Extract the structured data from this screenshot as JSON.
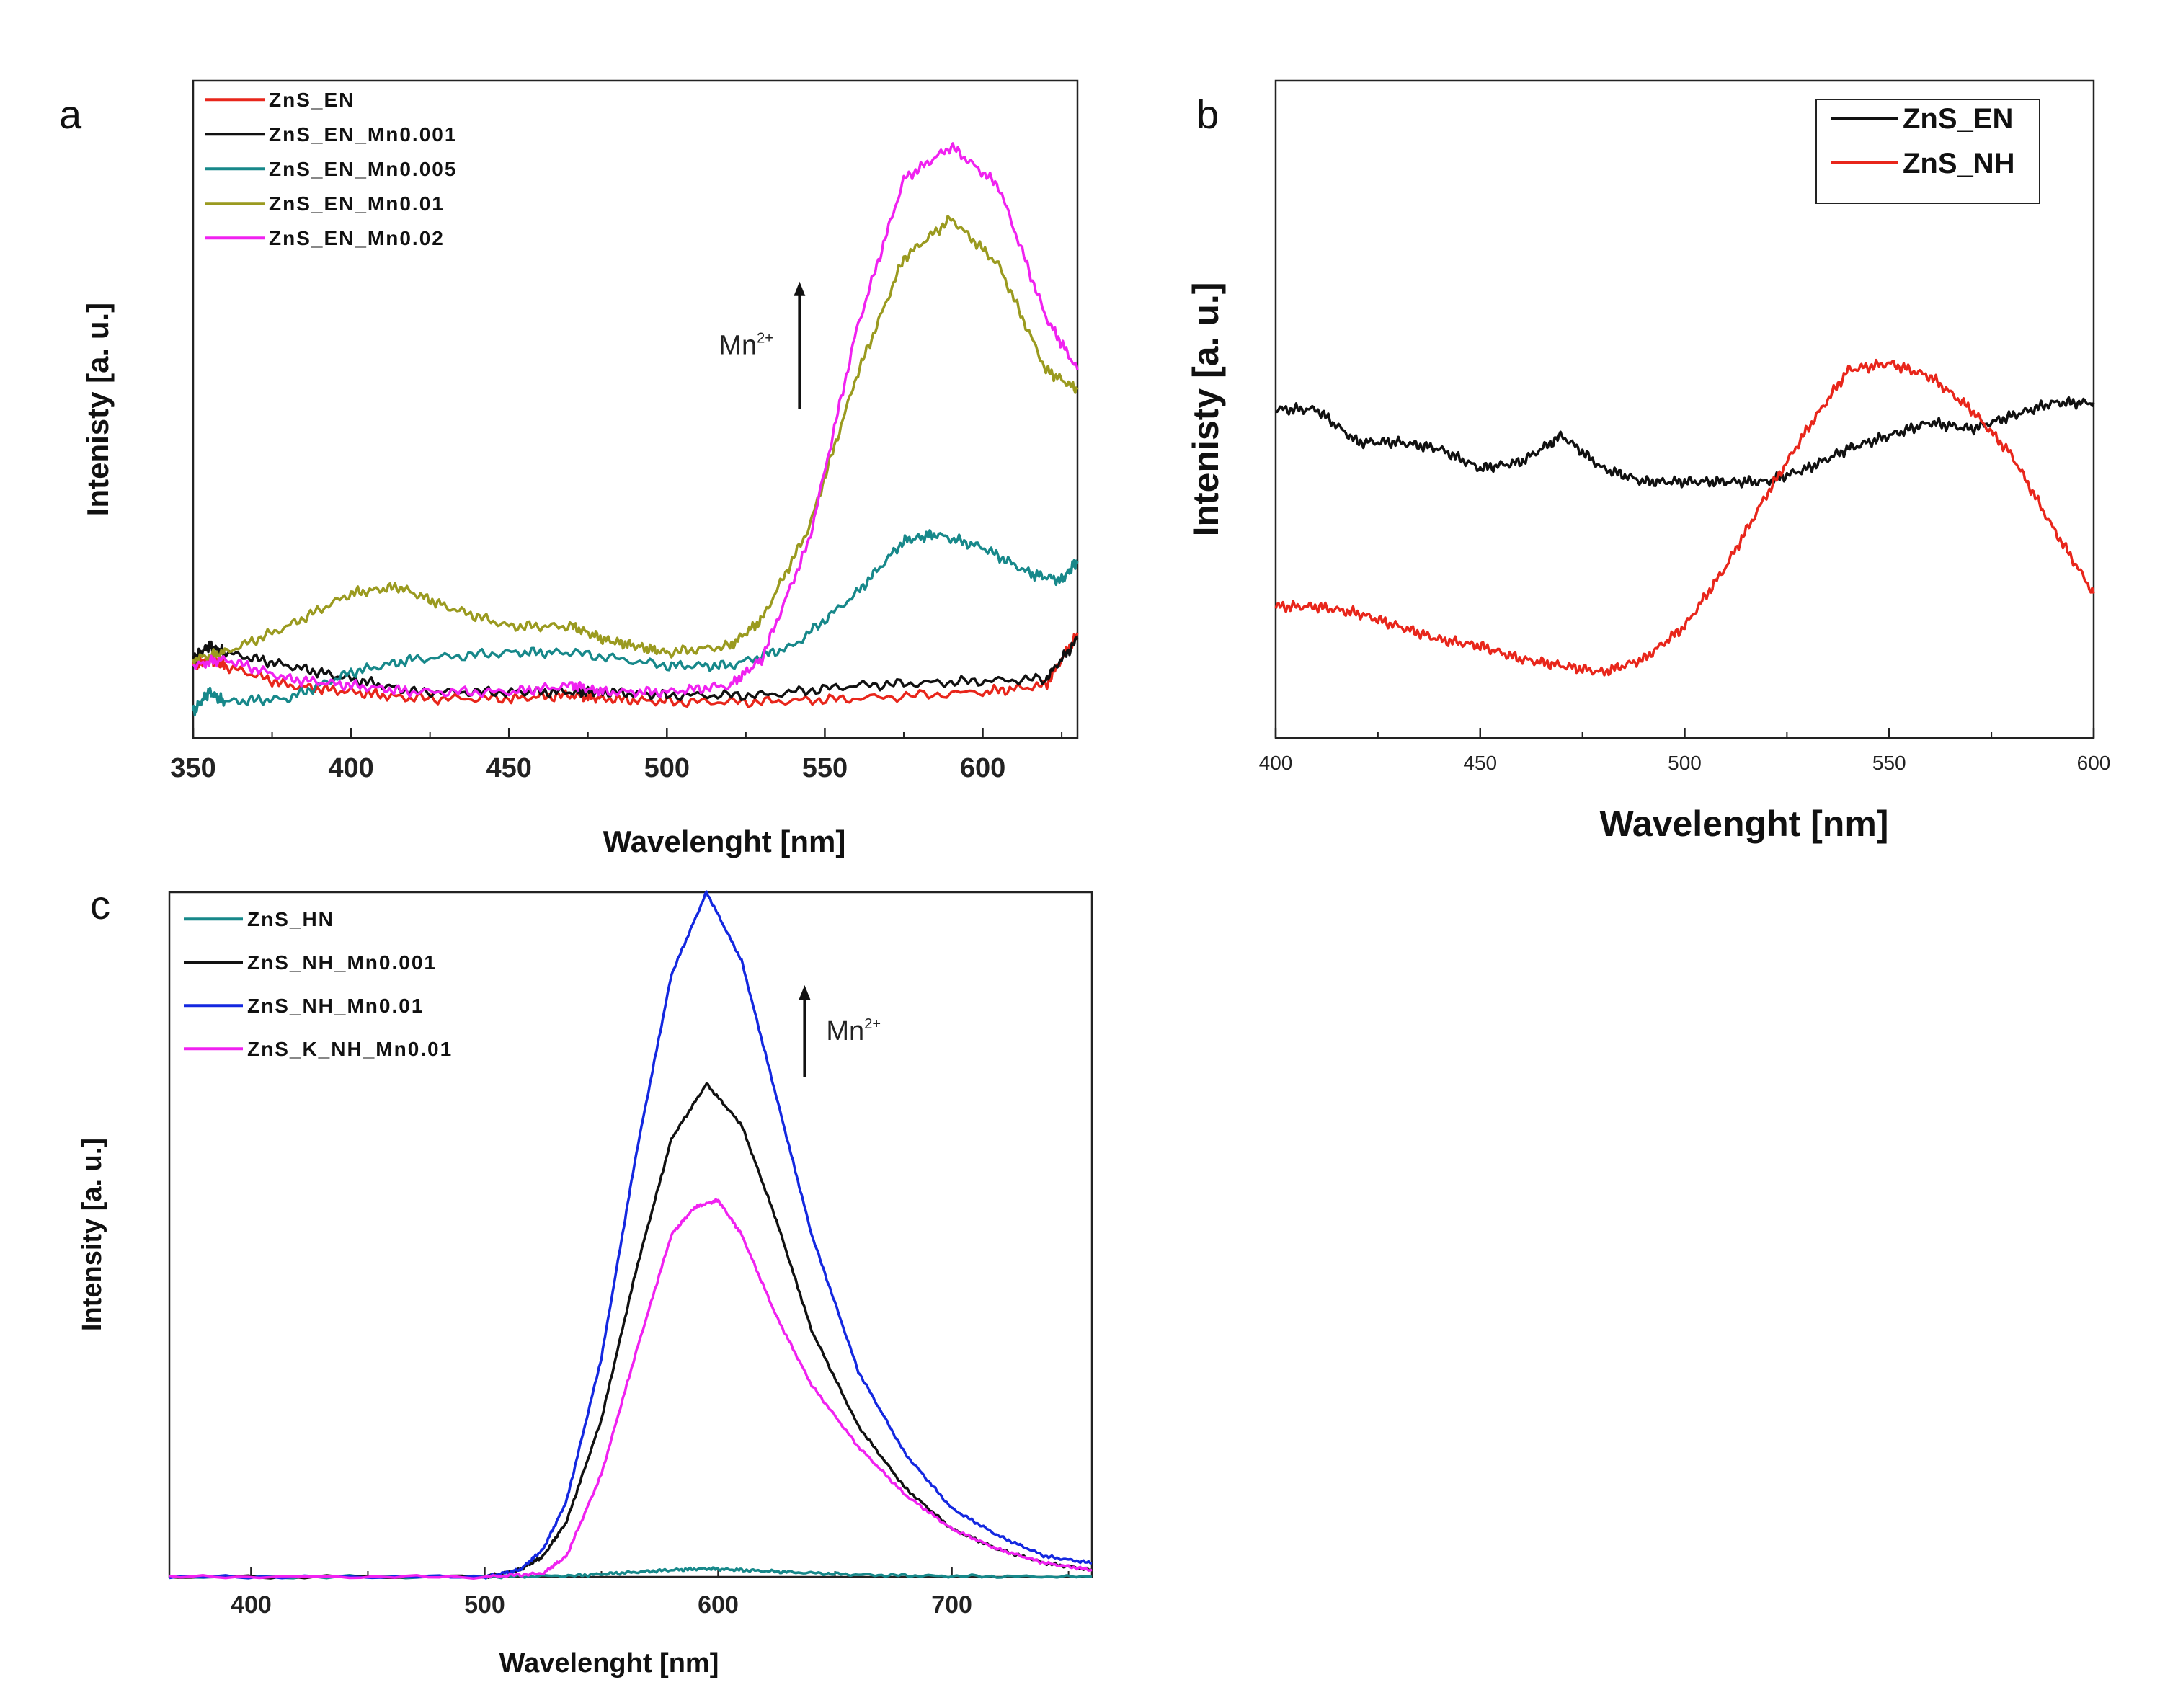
{
  "chart_data": [
    {
      "panel": "a",
      "type": "line",
      "xlabel": "Wavelenght [nm]",
      "ylabel": "Intenisty [a. u.]",
      "xlim": [
        350,
        630
      ],
      "ylim": [
        0,
        100
      ],
      "xticks": [
        350,
        400,
        450,
        500,
        550,
        600
      ],
      "annotation": {
        "text": "Mn",
        "sup": "2+",
        "x": 542,
        "y_from": 50,
        "y_to": 69
      },
      "series": [
        {
          "name": "ZnS_EN",
          "color": "#e8261b",
          "x": [
            350,
            355,
            360,
            380,
            400,
            420,
            450,
            470,
            480,
            500,
            530,
            560,
            600,
            620,
            630
          ],
          "y": [
            11,
            12,
            11,
            8,
            7,
            6,
            6,
            6.5,
            6,
            5.5,
            5.5,
            6,
            7,
            8,
            16
          ]
        },
        {
          "name": "ZnS_EN_Mn0.001",
          "color": "#111111",
          "x": [
            350,
            355,
            360,
            380,
            400,
            420,
            450,
            470,
            480,
            500,
            530,
            560,
            590,
            620,
            630
          ],
          "y": [
            12,
            14,
            13,
            11,
            9,
            7,
            7,
            7,
            7,
            6.5,
            6.5,
            8,
            8.5,
            9,
            15
          ]
        },
        {
          "name": "ZnS_EN_Mn0.005",
          "color": "#17888a",
          "x": [
            350,
            355,
            360,
            380,
            400,
            420,
            450,
            470,
            500,
            520,
            540,
            560,
            575,
            585,
            600,
            615,
            625,
            630
          ],
          "y": [
            4,
            7,
            5.5,
            6,
            10,
            12,
            13,
            13,
            11,
            11,
            14,
            22,
            30,
            31,
            29,
            25,
            24,
            27
          ]
        },
        {
          "name": "ZnS_EN_Mn0.01",
          "color": "#9a9a1f",
          "x": [
            350,
            360,
            380,
            400,
            415,
            430,
            450,
            470,
            480,
            490,
            500,
            520,
            530,
            545,
            560,
            575,
            590,
            605,
            620,
            630
          ],
          "y": [
            12,
            13,
            17,
            22,
            23,
            20,
            17,
            17,
            15,
            14,
            13,
            14,
            18,
            32,
            55,
            73,
            79,
            72,
            56,
            53
          ]
        },
        {
          "name": "ZnS_EN_Mn0.02",
          "color": "#f022f0",
          "x": [
            350,
            360,
            380,
            400,
            420,
            450,
            470,
            480,
            500,
            520,
            530,
            545,
            560,
            575,
            590,
            605,
            620,
            630
          ],
          "y": [
            11,
            12,
            9,
            8,
            7,
            7,
            8,
            7,
            7,
            8,
            12,
            30,
            62,
            85,
            90,
            84,
            64,
            56
          ]
        }
      ]
    },
    {
      "panel": "b",
      "type": "line",
      "xlabel": "Wavelenght [nm]",
      "ylabel": "Intenisty [a. u.]",
      "xlim": [
        400,
        600
      ],
      "ylim": [
        0,
        100
      ],
      "xticks": [
        400,
        450,
        500,
        550,
        600
      ],
      "series": [
        {
          "name": "ZnS_EN",
          "color": "#111111",
          "x": [
            400,
            410,
            420,
            430,
            440,
            450,
            460,
            470,
            480,
            490,
            500,
            510,
            520,
            530,
            540,
            550,
            560,
            570,
            580,
            590,
            600
          ],
          "y": [
            50,
            50,
            45,
            45,
            44,
            41,
            42,
            46,
            41,
            39,
            39,
            39,
            39,
            41,
            44,
            46,
            48,
            47,
            49,
            51,
            51
          ]
        },
        {
          "name": "ZnS_NH",
          "color": "#e8261b",
          "x": [
            400,
            410,
            420,
            430,
            440,
            450,
            460,
            470,
            480,
            490,
            500,
            510,
            520,
            530,
            540,
            550,
            560,
            570,
            580,
            590,
            600
          ],
          "y": [
            20,
            20,
            19,
            17,
            15,
            14,
            12,
            11,
            10,
            12,
            17,
            26,
            37,
            47,
            56,
            57,
            55,
            50,
            43,
            32,
            22
          ]
        }
      ]
    },
    {
      "panel": "c",
      "type": "line",
      "xlabel": "Wavelenght [nm]",
      "ylabel": "Intensity [a. u.]",
      "xlim": [
        365,
        760
      ],
      "ylim": [
        0,
        100
      ],
      "xticks": [
        400,
        500,
        600,
        700
      ],
      "annotation": {
        "text": "Mn",
        "sup": "2+",
        "x": 637,
        "y_from": 73,
        "y_to": 86
      },
      "series": [
        {
          "name": "ZnS_HN",
          "color": "#17888a",
          "x": [
            365,
            500,
            540,
            560,
            580,
            595,
            610,
            630,
            660,
            700,
            760
          ],
          "y": [
            0,
            0,
            0.2,
            0.6,
            1,
            1.2,
            1,
            0.7,
            0.3,
            0.1,
            0
          ]
        },
        {
          "name": "ZnS_NH_Mn0.001",
          "color": "#111111",
          "x": [
            365,
            500,
            515,
            525,
            535,
            550,
            565,
            580,
            595,
            610,
            625,
            640,
            660,
            680,
            700,
            720,
            740,
            760
          ],
          "y": [
            0,
            0,
            1,
            3,
            8,
            23,
            45,
            64,
            72,
            66,
            52,
            36,
            22,
            13,
            7,
            4,
            2,
            1
          ]
        },
        {
          "name": "ZnS_NH_Mn0.01",
          "color": "#1428e0",
          "x": [
            365,
            500,
            515,
            525,
            535,
            550,
            565,
            580,
            595,
            610,
            625,
            640,
            660,
            680,
            700,
            720,
            740,
            760
          ],
          "y": [
            0,
            0,
            1,
            4,
            11,
            32,
            62,
            88,
            100,
            90,
            70,
            50,
            30,
            18,
            10,
            6,
            3,
            2
          ]
        },
        {
          "name": "ZnS_K_NH_Mn0.01",
          "color": "#f022f0",
          "x": [
            365,
            500,
            525,
            535,
            550,
            565,
            580,
            590,
            600,
            610,
            625,
            640,
            660,
            680,
            700,
            720,
            740,
            760
          ],
          "y": [
            0,
            0,
            0.5,
            3,
            15,
            33,
            50,
            54,
            55,
            50,
            38,
            28,
            19,
            12,
            7,
            4,
            2,
            1
          ]
        }
      ]
    }
  ]
}
